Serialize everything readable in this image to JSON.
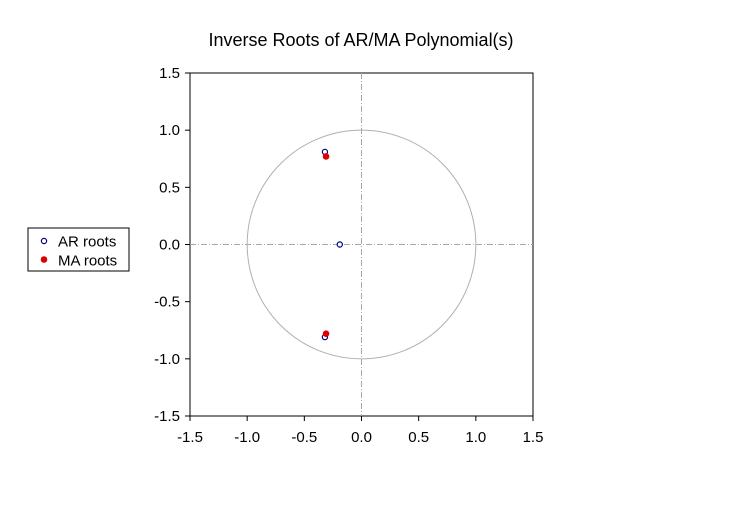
{
  "chart_data": {
    "type": "scatter",
    "title": "Inverse Roots of AR/MA Polynomial(s)",
    "xlabel": "",
    "ylabel": "",
    "xlim": [
      -1.5,
      1.5
    ],
    "ylim": [
      -1.5,
      1.5
    ],
    "x_ticks": [
      -1.5,
      -1.0,
      -0.5,
      0.0,
      0.5,
      1.0,
      1.5
    ],
    "y_ticks": [
      -1.5,
      -1.0,
      -0.5,
      0.0,
      0.5,
      1.0,
      1.5
    ],
    "x_tick_labels": [
      "-1.5",
      "-1.0",
      "-0.5",
      "0.0",
      "0.5",
      "1.0",
      "1.5"
    ],
    "y_tick_labels": [
      "-1.5",
      "-1.0",
      "-0.5",
      "0.0",
      "0.5",
      "1.0",
      "1.5"
    ],
    "unit_circle": true,
    "zero_lines": true,
    "legend_position": "left",
    "series": [
      {
        "name": "AR roots",
        "marker": "hollow-circle",
        "color": "#000080",
        "points": [
          {
            "x": -0.32,
            "y": 0.81
          },
          {
            "x": -0.19,
            "y": 0.0
          },
          {
            "x": -0.32,
            "y": -0.81
          }
        ]
      },
      {
        "name": "MA roots",
        "marker": "filled-circle",
        "color": "#dd0000",
        "points": [
          {
            "x": -0.31,
            "y": 0.77
          },
          {
            "x": -0.31,
            "y": -0.78
          }
        ]
      }
    ]
  }
}
